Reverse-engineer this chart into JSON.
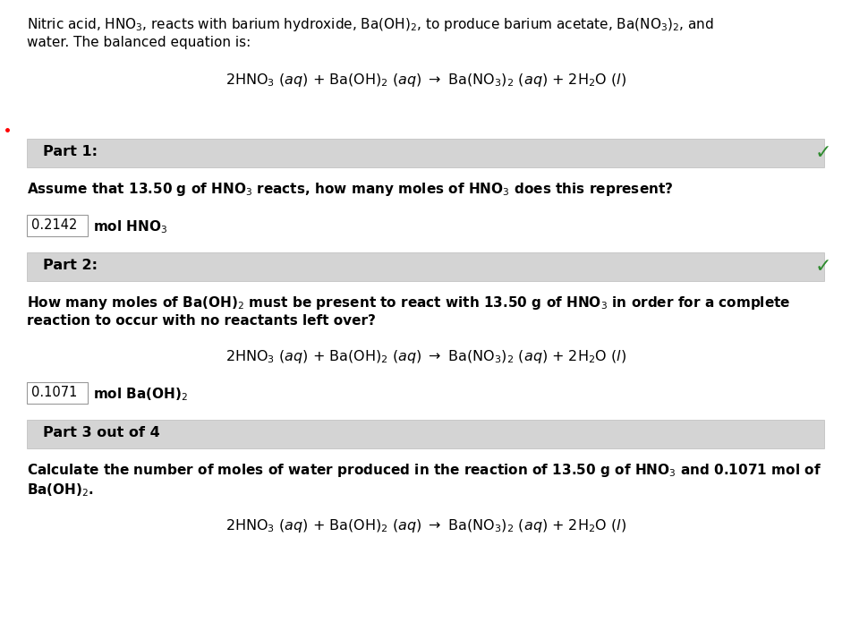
{
  "bg_color": "#ffffff",
  "text_color": "#000000",
  "gray_bar_color": "#d4d4d4",
  "box_border_color": "#999999",
  "checkmark_color": "#2e8b2e",
  "part1_label": "Part 1:",
  "part1_answer": "0.2142",
  "part2_label": "Part 2:",
  "part2_answer": "0.1071",
  "part3_label": "Part 3 out of 4",
  "figwidth": 9.51,
  "figheight": 7.05,
  "dpi": 100
}
